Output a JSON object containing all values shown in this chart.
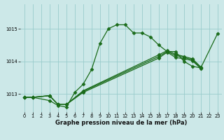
{
  "xlabel": "Graphe pression niveau de la mer (hPa)",
  "bg_color": "#cce8e8",
  "grid_color": "#99cccc",
  "line_color": "#1a6b1a",
  "xlim": [
    -0.5,
    23.5
  ],
  "ylim": [
    1012.45,
    1015.75
  ],
  "yticks": [
    1013,
    1014,
    1015
  ],
  "xticks": [
    0,
    1,
    2,
    3,
    4,
    5,
    6,
    7,
    8,
    9,
    10,
    11,
    12,
    13,
    14,
    15,
    16,
    17,
    18,
    19,
    20,
    21,
    22,
    23
  ],
  "main_x": [
    0,
    1,
    3,
    4,
    5,
    6,
    7,
    8,
    9,
    10,
    11,
    12,
    13,
    14,
    15,
    16,
    17,
    18,
    19,
    20,
    21,
    23
  ],
  "main_y": [
    1012.9,
    1012.9,
    1012.8,
    1012.65,
    1012.6,
    1013.05,
    1013.3,
    1013.75,
    1014.55,
    1015.0,
    1015.12,
    1015.12,
    1014.87,
    1014.87,
    1014.75,
    1014.5,
    1014.3,
    1014.3,
    1014.0,
    1013.85,
    1013.8,
    1014.85
  ],
  "line2_x": [
    0,
    1,
    3,
    4,
    5,
    7,
    16,
    17,
    18,
    19,
    20,
    21
  ],
  "line2_y": [
    1012.9,
    1012.9,
    1012.95,
    1012.68,
    1012.68,
    1013.05,
    1014.1,
    1014.28,
    1014.12,
    1014.08,
    1014.02,
    1013.78
  ],
  "line3_x": [
    0,
    1,
    3,
    4,
    5,
    7,
    16,
    17,
    18,
    19,
    20,
    21
  ],
  "line3_y": [
    1012.9,
    1012.9,
    1012.95,
    1012.68,
    1012.68,
    1013.08,
    1014.15,
    1014.3,
    1014.18,
    1014.12,
    1014.05,
    1013.8
  ],
  "line4_x": [
    0,
    1,
    3,
    4,
    5,
    7,
    16,
    17,
    18,
    19,
    20,
    21
  ],
  "line4_y": [
    1012.9,
    1012.9,
    1012.95,
    1012.68,
    1012.68,
    1013.1,
    1014.2,
    1014.33,
    1014.22,
    1014.15,
    1014.08,
    1013.83
  ]
}
